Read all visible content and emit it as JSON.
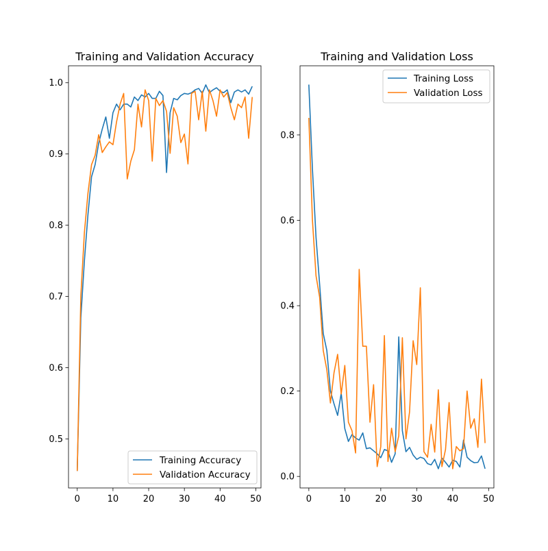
{
  "chart_data": [
    {
      "type": "line",
      "title": "Training and Validation Accuracy",
      "xlabel": "",
      "ylabel": "",
      "xlim": [
        -2.45,
        51.45
      ],
      "ylim": [
        0.4312,
        1.0238
      ],
      "xticks": [
        0,
        10,
        20,
        30,
        40,
        50
      ],
      "yticks": [
        0.5,
        0.6,
        0.7,
        0.8,
        0.9,
        1.0
      ],
      "ytick_labels": [
        "0.5",
        "0.6",
        "0.7",
        "0.8",
        "0.9",
        "1.0"
      ],
      "legend_position": "lower right",
      "series": [
        {
          "name": "Training Accuracy",
          "color": "#1f77b4",
          "values": [
            0.455,
            0.67,
            0.75,
            0.815,
            0.868,
            0.885,
            0.915,
            0.935,
            0.952,
            0.922,
            0.958,
            0.97,
            0.962,
            0.97,
            0.97,
            0.966,
            0.98,
            0.975,
            0.983,
            0.98,
            0.985,
            0.978,
            0.978,
            0.988,
            0.982,
            0.874,
            0.958,
            0.978,
            0.976,
            0.982,
            0.985,
            0.984,
            0.986,
            0.99,
            0.992,
            0.985,
            0.997,
            0.986,
            0.99,
            0.993,
            0.988,
            0.986,
            0.99,
            0.972,
            0.987,
            0.99,
            0.987,
            0.99,
            0.984,
            0.995
          ]
        },
        {
          "name": "Validation Accuracy",
          "color": "#ff7f0e",
          "values": [
            0.455,
            0.7,
            0.79,
            0.845,
            0.885,
            0.898,
            0.927,
            0.902,
            0.91,
            0.917,
            0.913,
            0.945,
            0.97,
            0.985,
            0.865,
            0.89,
            0.906,
            0.97,
            0.938,
            0.99,
            0.975,
            0.89,
            0.978,
            0.968,
            0.975,
            0.96,
            0.901,
            0.965,
            0.953,
            0.916,
            0.928,
            0.886,
            0.985,
            0.988,
            0.948,
            0.988,
            0.932,
            0.99,
            0.975,
            0.953,
            0.99,
            0.98,
            0.986,
            0.965,
            0.948,
            0.97,
            0.965,
            0.98,
            0.922,
            0.98
          ]
        }
      ]
    },
    {
      "type": "line",
      "title": "Training and Validation Loss",
      "xlabel": "",
      "ylabel": "",
      "xlim": [
        -2.45,
        51.45
      ],
      "ylim": [
        -0.027,
        0.962
      ],
      "xticks": [
        0,
        10,
        20,
        30,
        40,
        50
      ],
      "yticks": [
        0.0,
        0.2,
        0.4,
        0.6,
        0.8
      ],
      "ytick_labels": [
        "0.0",
        "0.2",
        "0.4",
        "0.6",
        "0.8"
      ],
      "legend_position": "upper right",
      "series": [
        {
          "name": "Training Loss",
          "color": "#1f77b4",
          "values": [
            0.918,
            0.72,
            0.56,
            0.45,
            0.335,
            0.295,
            0.2,
            0.17,
            0.143,
            0.195,
            0.112,
            0.082,
            0.098,
            0.09,
            0.085,
            0.102,
            0.065,
            0.067,
            0.06,
            0.053,
            0.044,
            0.063,
            0.06,
            0.033,
            0.053,
            0.327,
            0.107,
            0.058,
            0.068,
            0.05,
            0.04,
            0.045,
            0.042,
            0.03,
            0.027,
            0.04,
            0.018,
            0.043,
            0.033,
            0.022,
            0.038,
            0.035,
            0.022,
            0.085,
            0.045,
            0.037,
            0.032,
            0.033,
            0.048,
            0.018
          ]
        },
        {
          "name": "Validation Loss",
          "color": "#ff7f0e",
          "values": [
            0.84,
            0.6,
            0.47,
            0.42,
            0.295,
            0.25,
            0.172,
            0.243,
            0.286,
            0.193,
            0.26,
            0.127,
            0.107,
            0.055,
            0.485,
            0.305,
            0.305,
            0.127,
            0.215,
            0.023,
            0.07,
            0.33,
            0.035,
            0.113,
            0.058,
            0.095,
            0.325,
            0.088,
            0.151,
            0.318,
            0.262,
            0.442,
            0.058,
            0.045,
            0.122,
            0.057,
            0.203,
            0.023,
            0.063,
            0.173,
            0.018,
            0.07,
            0.06,
            0.065,
            0.2,
            0.113,
            0.135,
            0.068,
            0.228,
            0.078
          ]
        }
      ]
    }
  ]
}
